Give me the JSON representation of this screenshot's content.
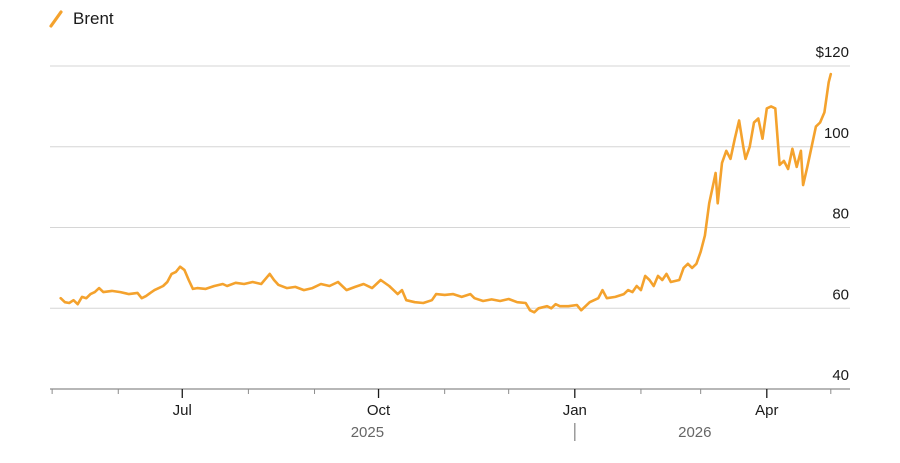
{
  "chart_data": {
    "type": "line",
    "title": "",
    "xlabel": "",
    "ylabel": "",
    "legend": {
      "placement": "top-left",
      "entries": [
        "Brent"
      ]
    },
    "series": [
      {
        "name": "Brent",
        "color": "#f4a22d",
        "points": [
          [
            "2025-05-05",
            62.5
          ],
          [
            "2025-05-07",
            61.5
          ],
          [
            "2025-05-09",
            61.3
          ],
          [
            "2025-05-11",
            62.0
          ],
          [
            "2025-05-13",
            61.0
          ],
          [
            "2025-05-15",
            62.8
          ],
          [
            "2025-05-17",
            62.5
          ],
          [
            "2025-05-19",
            63.5
          ],
          [
            "2025-05-21",
            64.0
          ],
          [
            "2025-05-23",
            65.0
          ],
          [
            "2025-05-25",
            64.0
          ],
          [
            "2025-05-29",
            64.3
          ],
          [
            "2025-06-02",
            64.0
          ],
          [
            "2025-06-06",
            63.5
          ],
          [
            "2025-06-10",
            63.8
          ],
          [
            "2025-06-12",
            62.5
          ],
          [
            "2025-06-14",
            63.0
          ],
          [
            "2025-06-16",
            63.8
          ],
          [
            "2025-06-18",
            64.5
          ],
          [
            "2025-06-20",
            65.0
          ],
          [
            "2025-06-22",
            65.5
          ],
          [
            "2025-06-24",
            66.5
          ],
          [
            "2025-06-26",
            68.5
          ],
          [
            "2025-06-28",
            69.0
          ],
          [
            "2025-06-30",
            70.3
          ],
          [
            "2025-07-02",
            69.5
          ],
          [
            "2025-07-04",
            67.0
          ],
          [
            "2025-07-06",
            64.8
          ],
          [
            "2025-07-08",
            65.0
          ],
          [
            "2025-07-12",
            64.8
          ],
          [
            "2025-07-16",
            65.5
          ],
          [
            "2025-07-20",
            66.0
          ],
          [
            "2025-07-22",
            65.5
          ],
          [
            "2025-07-26",
            66.3
          ],
          [
            "2025-07-30",
            66.0
          ],
          [
            "2025-08-03",
            66.5
          ],
          [
            "2025-08-07",
            66.0
          ],
          [
            "2025-08-11",
            68.5
          ],
          [
            "2025-08-13",
            67.0
          ],
          [
            "2025-08-15",
            65.8
          ],
          [
            "2025-08-19",
            65.0
          ],
          [
            "2025-08-23",
            65.3
          ],
          [
            "2025-08-27",
            64.5
          ],
          [
            "2025-08-31",
            65.0
          ],
          [
            "2025-09-04",
            66.0
          ],
          [
            "2025-09-08",
            65.5
          ],
          [
            "2025-09-12",
            66.5
          ],
          [
            "2025-09-16",
            64.5
          ],
          [
            "2025-09-20",
            65.3
          ],
          [
            "2025-09-24",
            66.0
          ],
          [
            "2025-09-28",
            65.0
          ],
          [
            "2025-10-02",
            67.0
          ],
          [
            "2025-10-06",
            65.5
          ],
          [
            "2025-10-08",
            64.5
          ],
          [
            "2025-10-10",
            63.5
          ],
          [
            "2025-10-12",
            64.5
          ],
          [
            "2025-10-14",
            62.0
          ],
          [
            "2025-10-18",
            61.5
          ],
          [
            "2025-10-22",
            61.3
          ],
          [
            "2025-10-26",
            62.0
          ],
          [
            "2025-10-28",
            63.5
          ],
          [
            "2025-11-01",
            63.3
          ],
          [
            "2025-11-05",
            63.5
          ],
          [
            "2025-11-09",
            62.8
          ],
          [
            "2025-11-13",
            63.5
          ],
          [
            "2025-11-15",
            62.5
          ],
          [
            "2025-11-19",
            61.8
          ],
          [
            "2025-11-23",
            62.2
          ],
          [
            "2025-11-27",
            61.8
          ],
          [
            "2025-12-01",
            62.3
          ],
          [
            "2025-12-05",
            61.5
          ],
          [
            "2025-12-09",
            61.3
          ],
          [
            "2025-12-11",
            59.5
          ],
          [
            "2025-12-13",
            59.0
          ],
          [
            "2025-12-15",
            60.0
          ],
          [
            "2025-12-19",
            60.5
          ],
          [
            "2025-12-21",
            60.0
          ],
          [
            "2025-12-23",
            61.0
          ],
          [
            "2025-12-25",
            60.5
          ],
          [
            "2025-12-29",
            60.5
          ],
          [
            "2026-01-02",
            60.8
          ],
          [
            "2026-01-04",
            59.5
          ],
          [
            "2026-01-08",
            61.5
          ],
          [
            "2026-01-12",
            62.5
          ],
          [
            "2026-01-14",
            64.5
          ],
          [
            "2026-01-16",
            62.5
          ],
          [
            "2026-01-20",
            62.8
          ],
          [
            "2026-01-24",
            63.5
          ],
          [
            "2026-01-26",
            64.5
          ],
          [
            "2026-01-28",
            64.0
          ],
          [
            "2026-01-30",
            65.5
          ],
          [
            "2026-02-01",
            64.5
          ],
          [
            "2026-02-03",
            68.0
          ],
          [
            "2026-02-05",
            67.0
          ],
          [
            "2026-02-07",
            65.5
          ],
          [
            "2026-02-09",
            68.0
          ],
          [
            "2026-02-11",
            67.0
          ],
          [
            "2026-02-13",
            68.5
          ],
          [
            "2026-02-15",
            66.5
          ],
          [
            "2026-02-19",
            67.0
          ],
          [
            "2026-02-21",
            70.0
          ],
          [
            "2026-02-23",
            71.0
          ],
          [
            "2026-02-25",
            70.0
          ],
          [
            "2026-02-27",
            71.0
          ],
          [
            "2026-03-01",
            74.0
          ],
          [
            "2026-03-03",
            78.0
          ],
          [
            "2026-03-05",
            86.0
          ],
          [
            "2026-03-07",
            91.0
          ],
          [
            "2026-03-08",
            93.5
          ],
          [
            "2026-03-09",
            86.0
          ],
          [
            "2026-03-11",
            96.0
          ],
          [
            "2026-03-13",
            99.0
          ],
          [
            "2026-03-15",
            97.0
          ],
          [
            "2026-03-17",
            102.0
          ],
          [
            "2026-03-19",
            106.5
          ],
          [
            "2026-03-21",
            100.0
          ],
          [
            "2026-03-22",
            97.0
          ],
          [
            "2026-03-24",
            100.0
          ],
          [
            "2026-03-26",
            106.0
          ],
          [
            "2026-03-28",
            107.0
          ],
          [
            "2026-03-30",
            102.0
          ],
          [
            "2026-04-01",
            109.5
          ],
          [
            "2026-04-03",
            110.0
          ],
          [
            "2026-04-05",
            109.5
          ],
          [
            "2026-04-07",
            95.5
          ],
          [
            "2026-04-09",
            96.5
          ],
          [
            "2026-04-11",
            94.5
          ],
          [
            "2026-04-13",
            99.5
          ],
          [
            "2026-04-15",
            95.0
          ],
          [
            "2026-04-17",
            99.0
          ],
          [
            "2026-04-18",
            90.5
          ],
          [
            "2026-04-20",
            95.0
          ],
          [
            "2026-04-22",
            100.0
          ],
          [
            "2026-04-24",
            105.0
          ],
          [
            "2026-04-26",
            106.0
          ],
          [
            "2026-04-28",
            108.5
          ],
          [
            "2026-04-30",
            116.0
          ],
          [
            "2026-05-01",
            118.0
          ]
        ]
      }
    ],
    "y_axis": {
      "range": [
        40,
        120
      ],
      "position": "right",
      "ticks": [
        {
          "value": 120,
          "label": "$120"
        },
        {
          "value": 100,
          "label": "100"
        },
        {
          "value": 80,
          "label": "80"
        },
        {
          "value": 60,
          "label": "60"
        },
        {
          "value": 40,
          "label": "40"
        }
      ]
    },
    "x_axis": {
      "range": [
        "2025-04-30",
        "2026-05-10"
      ],
      "ticks": [
        {
          "date": "2025-07-01",
          "label": "Jul"
        },
        {
          "date": "2025-10-01",
          "label": "Oct"
        },
        {
          "date": "2026-01-01",
          "label": "Jan"
        },
        {
          "date": "2026-04-01",
          "label": "Apr"
        }
      ],
      "minor_ticks": [
        "2025-05-01",
        "2025-06-01",
        "2025-08-01",
        "2025-09-01",
        "2025-11-01",
        "2025-12-01",
        "2026-02-01",
        "2026-03-01",
        "2026-05-01"
      ],
      "years": [
        "2025",
        "2026"
      ],
      "year_divider": "2026-01-01"
    },
    "grid": {
      "horizontal": true,
      "vertical": false
    }
  }
}
